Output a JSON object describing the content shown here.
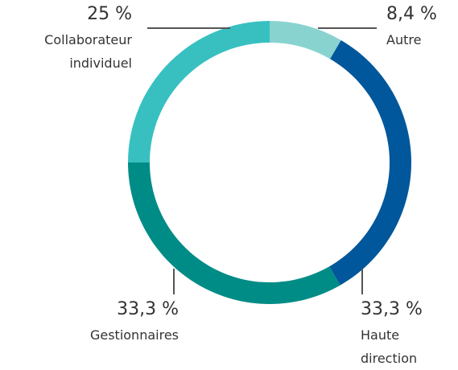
{
  "chart_data": {
    "type": "donut",
    "categories": [
      "Autre",
      "Haute direction",
      "Gestionnaires",
      "Collaborateur individuel"
    ],
    "values": [
      8.4,
      33.3,
      33.3,
      25
    ],
    "value_labels": [
      "8,4 %",
      "33,3 %",
      "33,3 %",
      "25 %"
    ],
    "colors": [
      "#88d3d0",
      "#00579b",
      "#008c86",
      "#38c0c1"
    ]
  }
}
